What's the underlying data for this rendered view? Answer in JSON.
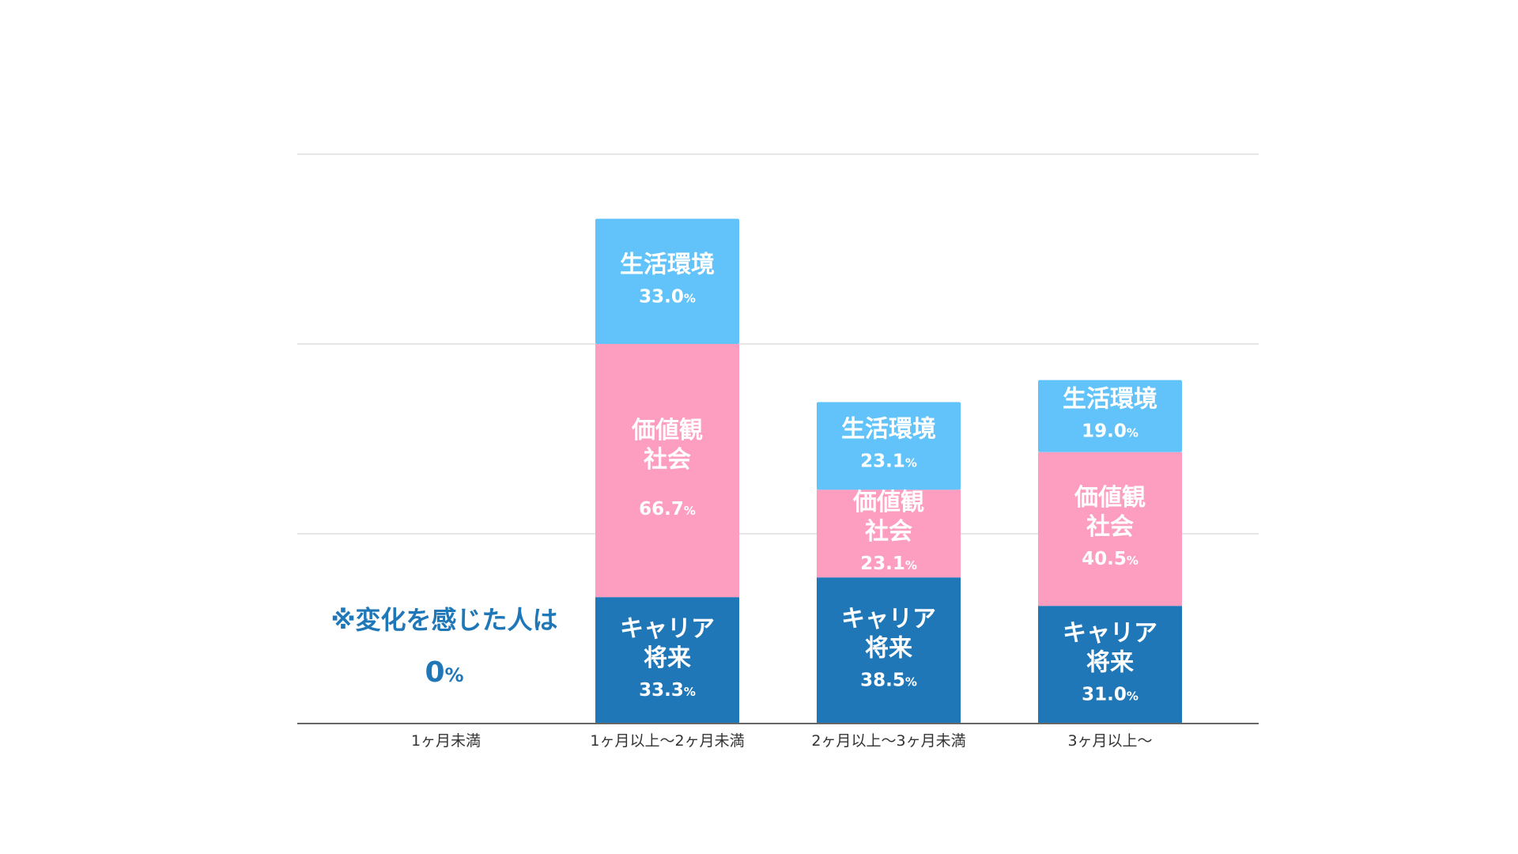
{
  "chart_data": {
    "type": "bar",
    "stacked": true,
    "categories": [
      "1ヶ月未満",
      "1ヶ月以上〜2ヶ月未満",
      "2ヶ月以上〜3ヶ月未満",
      "3ヶ月以上〜"
    ],
    "series": [
      {
        "name": "キャリア\n将来",
        "label_lines": [
          "キャリア",
          "将来"
        ],
        "color": "#1f77b8",
        "values": [
          null,
          33.3,
          38.5,
          31.0
        ],
        "value_labels": [
          "",
          "33.3",
          "38.5",
          "31.0"
        ]
      },
      {
        "name": "価値観\n社会",
        "label_lines": [
          "価値観",
          "社会"
        ],
        "color": "#fd9dbf",
        "values": [
          null,
          66.7,
          23.1,
          40.5
        ],
        "value_labels": [
          "",
          "66.7",
          "23.1",
          "40.5"
        ]
      },
      {
        "name": "生活環境",
        "label_lines": [
          "生活環境"
        ],
        "color": "#62c3fa",
        "values": [
          null,
          33.0,
          23.1,
          19.0
        ],
        "value_labels": [
          "",
          "33.0",
          "23.1",
          "19.0"
        ]
      }
    ],
    "value_suffix": "%",
    "ylim": [
      0,
      150
    ],
    "gridlines": [
      50,
      100,
      150
    ],
    "grid": true,
    "gridline_color": "#dddddd",
    "axis_color": "#666666",
    "note": {
      "category_index": 0,
      "text": "※変化を感じた人は",
      "value": "0",
      "suffix": "%"
    }
  }
}
